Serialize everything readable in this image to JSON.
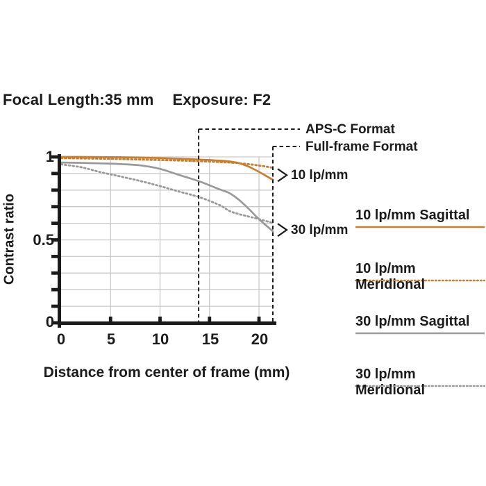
{
  "header": {
    "focal_label": "Focal Length:35 mm",
    "exposure_label": "Exposure: F2"
  },
  "chart_data": {
    "type": "line",
    "title": "MTF contrast chart",
    "xlabel": "Distance from center of frame (mm)",
    "ylabel": "Contrast ratio",
    "xlim": [
      0,
      21.4
    ],
    "ylim": [
      0,
      1
    ],
    "grid": true,
    "x_ticks": [
      0,
      5,
      10,
      15,
      20
    ],
    "x_tick_labels": [
      "0",
      "5",
      "10",
      "15",
      "20"
    ],
    "y_tick_labels": [
      "1",
      "0.5",
      "0"
    ],
    "y_ticks_labeled": [
      1,
      0.5,
      0
    ],
    "y_minor_tick_step": 0.1,
    "legend_position": "right",
    "colors": {
      "orange": "#C97E2E",
      "gray": "#999999",
      "grid": "#c9c9c9",
      "ink": "#1b1b1b"
    },
    "format_lines": [
      {
        "label": "APS-C Format",
        "x_mm": 13.9
      },
      {
        "label": "Full-frame Format",
        "x_mm": 21.4
      }
    ],
    "curve_end_labels": [
      {
        "label": "10 lp/mm",
        "y": 0.89
      },
      {
        "label": "30 lp/mm",
        "y": 0.56
      }
    ],
    "x_mm": [
      0,
      2,
      4,
      6,
      8,
      10,
      12,
      14,
      16,
      17,
      18,
      19,
      20,
      21.4
    ],
    "series": [
      {
        "name": "10 lp/mm Sagittal",
        "color": "#C97E2E",
        "style": "solid",
        "values": [
          1.0,
          1.0,
          0.999,
          0.998,
          0.996,
          0.993,
          0.989,
          0.984,
          0.978,
          0.973,
          0.962,
          0.94,
          0.91,
          0.862
        ]
      },
      {
        "name": "10 lp/mm Meridional",
        "color": "#C97E2E",
        "style": "dotted",
        "values": [
          0.993,
          0.991,
          0.989,
          0.987,
          0.984,
          0.981,
          0.978,
          0.974,
          0.969,
          0.966,
          0.962,
          0.956,
          0.948,
          0.935
        ]
      },
      {
        "name": "30 lp/mm Sagittal",
        "color": "#999999",
        "style": "solid",
        "values": [
          0.966,
          0.964,
          0.961,
          0.957,
          0.949,
          0.928,
          0.89,
          0.852,
          0.805,
          0.782,
          0.74,
          0.685,
          0.625,
          0.552
        ]
      },
      {
        "name": "30 lp/mm Meridional",
        "color": "#999999",
        "style": "dotted",
        "values": [
          0.955,
          0.938,
          0.908,
          0.882,
          0.855,
          0.824,
          0.79,
          0.757,
          0.71,
          0.675,
          0.655,
          0.64,
          0.625,
          0.602
        ]
      }
    ]
  }
}
